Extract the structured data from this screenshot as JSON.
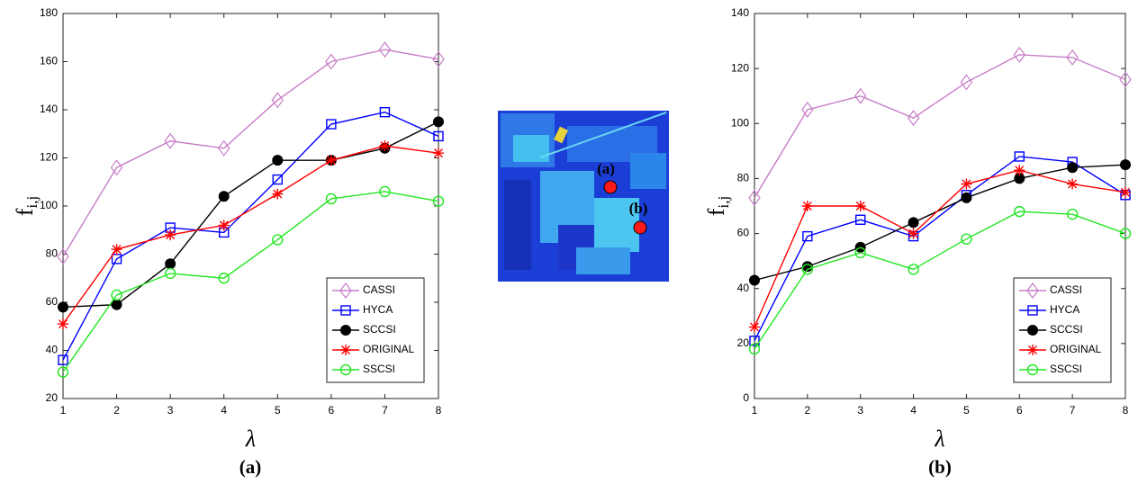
{
  "chart_data": [
    {
      "type": "line",
      "caption": "(a)",
      "xlabel": "λ",
      "ylabel": "f",
      "ylabel_subscript": "i,j",
      "x": [
        1,
        2,
        3,
        4,
        5,
        6,
        7,
        8
      ],
      "xlim": [
        1,
        8
      ],
      "xticks": [
        1,
        2,
        3,
        4,
        5,
        6,
        7,
        8
      ],
      "ylim": [
        20,
        180
      ],
      "yticks": [
        20,
        40,
        60,
        80,
        100,
        120,
        140,
        160,
        180
      ],
      "legend": "lower right",
      "series": [
        {
          "name": "CASSI",
          "color": "#c77dc7",
          "marker": "diamond",
          "values": [
            79,
            116,
            127,
            124,
            144,
            160,
            165,
            161
          ]
        },
        {
          "name": "HYCA",
          "color": "#0000ff",
          "marker": "square",
          "values": [
            36,
            78,
            91,
            89,
            111,
            134,
            139,
            129
          ]
        },
        {
          "name": "SCCSI",
          "color": "#000000",
          "marker": "filled-circle",
          "values": [
            58,
            59,
            76,
            104,
            119,
            119,
            124,
            135
          ]
        },
        {
          "name": "ORIGINAL",
          "color": "#ff0000",
          "marker": "asterisk",
          "values": [
            51,
            82,
            88,
            92,
            105,
            119,
            125,
            122
          ]
        },
        {
          "name": "SSCSI",
          "color": "#22e622",
          "marker": "circle",
          "values": [
            31,
            63,
            72,
            70,
            86,
            103,
            106,
            102
          ]
        }
      ]
    },
    {
      "type": "line",
      "caption": "(b)",
      "xlabel": "λ",
      "ylabel": "f",
      "ylabel_subscript": "i,j",
      "x": [
        1,
        2,
        3,
        4,
        5,
        6,
        7,
        8
      ],
      "xlim": [
        1,
        8
      ],
      "xticks": [
        1,
        2,
        3,
        4,
        5,
        6,
        7,
        8
      ],
      "ylim": [
        0,
        140
      ],
      "yticks": [
        0,
        20,
        40,
        60,
        80,
        100,
        120,
        140
      ],
      "legend": "lower right",
      "series": [
        {
          "name": "CASSI",
          "color": "#c77dc7",
          "marker": "diamond",
          "values": [
            73,
            105,
            110,
            102,
            115,
            125,
            124,
            116
          ]
        },
        {
          "name": "HYCA",
          "color": "#0000ff",
          "marker": "square",
          "values": [
            21,
            59,
            65,
            59,
            74,
            88,
            86,
            74
          ]
        },
        {
          "name": "SCCSI",
          "color": "#000000",
          "marker": "filled-circle",
          "values": [
            43,
            48,
            55,
            64,
            73,
            80,
            84,
            85
          ]
        },
        {
          "name": "ORIGINAL",
          "color": "#ff0000",
          "marker": "asterisk",
          "values": [
            26,
            70,
            70,
            60,
            78,
            83,
            78,
            75
          ]
        },
        {
          "name": "SSCSI",
          "color": "#22e622",
          "marker": "circle",
          "values": [
            18,
            47,
            53,
            47,
            58,
            68,
            67,
            60
          ]
        }
      ]
    }
  ],
  "figure_image": {
    "labels": [
      "(a)",
      "(b)"
    ]
  }
}
